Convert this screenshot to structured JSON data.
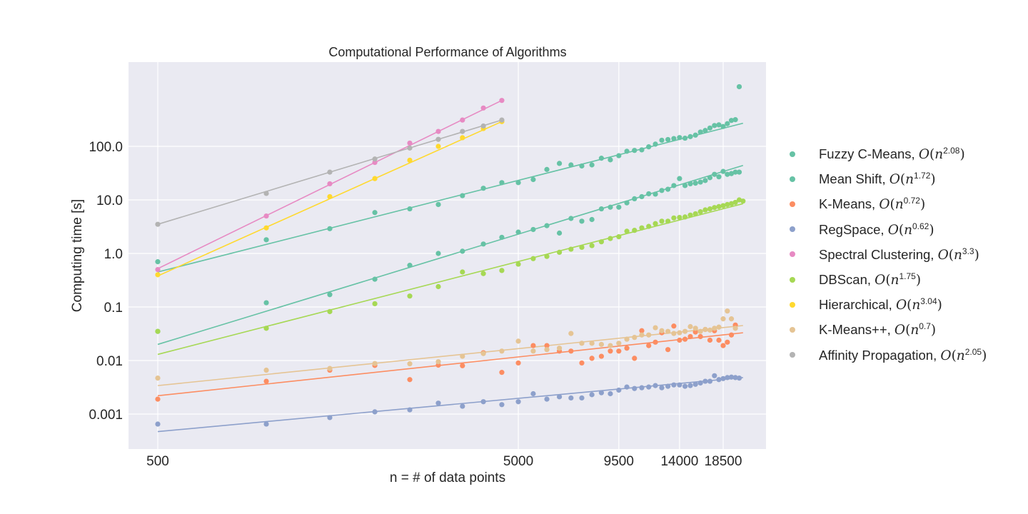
{
  "chart_data": {
    "type": "scatter",
    "title": "Computational Performance of Algorithms",
    "xlabel": "n = # of data points",
    "ylabel": "Computing time [s]",
    "xscale": "log",
    "yscale": "log",
    "xlim": [
      400,
      24000
    ],
    "ylim": [
      0.0002,
      2000
    ],
    "xticks": [
      500,
      5000,
      9500,
      14000,
      18500
    ],
    "xtick_labels": [
      "500",
      "5000",
      "9500",
      "14000",
      "18500"
    ],
    "yticks": [
      0.001,
      0.01,
      0.1,
      1,
      10,
      100
    ],
    "ytick_labels": [
      "0.001",
      "0.01",
      "0.1",
      "1.0",
      "10.0",
      "100.0"
    ],
    "grid": true,
    "legend_position": "right",
    "series": [
      {
        "name": "Fuzzy C-Means",
        "exponent": "2.08",
        "color": "#66c2a5",
        "fit": [
          [
            500,
            0.45
          ],
          [
            21000,
            270
          ]
        ],
        "x": [
          500,
          1000,
          1500,
          2000,
          2500,
          3000,
          3500,
          4000,
          4500,
          5000,
          5500,
          6000,
          6500,
          7000,
          7500,
          8000,
          8500,
          9000,
          9500,
          10000,
          10500,
          11000,
          11500,
          12000,
          12500,
          13000,
          13500,
          14000,
          14500,
          15000,
          15500,
          16000,
          16500,
          17000,
          17500,
          18000,
          18500,
          19000,
          19500,
          20000,
          20500,
          21000
        ],
        "y": [
          0.7,
          1.8,
          2.9,
          5.8,
          6.8,
          8.2,
          12,
          16.5,
          21,
          21,
          24,
          37,
          48,
          45,
          43,
          45,
          60,
          56,
          67,
          81,
          84,
          86,
          98,
          110,
          130,
          134,
          140,
          146,
          142,
          152,
          162,
          185,
          198,
          220,
          245,
          252,
          235,
          265,
          305,
          315,
          1300,
          0
        ]
      },
      {
        "name": "Mean Shift",
        "exponent": "1.72",
        "color": "#66c2a5",
        "fit": [
          [
            500,
            0.02
          ],
          [
            21000,
            44
          ]
        ],
        "x": [
          500,
          1000,
          1500,
          2000,
          2500,
          3000,
          3500,
          4000,
          4500,
          5000,
          5500,
          6000,
          6500,
          7000,
          7500,
          8000,
          8500,
          9000,
          9500,
          10000,
          10500,
          11000,
          11500,
          12000,
          12500,
          13000,
          13500,
          14000,
          14500,
          15000,
          15500,
          16000,
          16500,
          17000,
          17500,
          18000,
          18500,
          19000,
          19500,
          20000,
          20500
        ],
        "y": [
          0.035,
          0.12,
          0.17,
          0.33,
          0.6,
          1.0,
          1.1,
          1.5,
          2.0,
          2.5,
          2.8,
          3.3,
          2.4,
          4.5,
          4.0,
          4.3,
          6.8,
          7.3,
          7.3,
          8.8,
          10.5,
          11.5,
          13.0,
          12.8,
          15.0,
          15.8,
          18.5,
          25.0,
          18.5,
          20.0,
          20.5,
          21.5,
          23.0,
          26.0,
          30.0,
          27.0,
          34.0,
          30.0,
          31.0,
          33.0,
          33.0
        ]
      },
      {
        "name": "K-Means",
        "exponent": "0.72",
        "color": "#fc8d62",
        "fit": [
          [
            500,
            0.0022
          ],
          [
            21000,
            0.033
          ]
        ],
        "x": [
          500,
          1000,
          1500,
          2000,
          2500,
          3000,
          3500,
          4000,
          4500,
          5000,
          5500,
          6000,
          6500,
          7000,
          7500,
          8000,
          8500,
          9000,
          9500,
          10000,
          10500,
          11000,
          11500,
          12000,
          12500,
          13000,
          13500,
          14000,
          14500,
          15000,
          15500,
          16000,
          16500,
          17000,
          17500,
          18000,
          18500,
          19000,
          19500,
          20000,
          20500,
          21000
        ],
        "y": [
          0.0019,
          0.0041,
          0.0066,
          0.0081,
          0.0044,
          0.0082,
          0.008,
          0.014,
          0.006,
          0.009,
          0.019,
          0.019,
          0.015,
          0.015,
          0.009,
          0.011,
          0.012,
          0.015,
          0.015,
          0.017,
          0.011,
          0.036,
          0.019,
          0.022,
          0.033,
          0.016,
          0.044,
          0.024,
          0.025,
          0.028,
          0.034,
          0.028,
          0.038,
          0.024,
          0.036,
          0.024,
          0.019,
          0.022,
          0.03,
          0.046,
          0.0,
          0.0
        ]
      },
      {
        "name": "RegSpace",
        "exponent": "0.62",
        "color": "#8da0cb",
        "fit": [
          [
            500,
            0.00047
          ],
          [
            21000,
            0.0048
          ]
        ],
        "x": [
          500,
          1000,
          1500,
          2000,
          2500,
          3000,
          3500,
          4000,
          4500,
          5000,
          5500,
          6000,
          6500,
          7000,
          7500,
          8000,
          8500,
          9000,
          9500,
          10000,
          10500,
          11000,
          11500,
          12000,
          12500,
          13000,
          13500,
          14000,
          14500,
          15000,
          15500,
          16000,
          16500,
          17000,
          17500,
          18000,
          18500,
          19000,
          19500,
          20000,
          20500,
          21000
        ],
        "y": [
          0.00065,
          0.00065,
          0.00086,
          0.0011,
          0.0012,
          0.0016,
          0.0014,
          0.0017,
          0.0015,
          0.0017,
          0.0024,
          0.0019,
          0.0021,
          0.002,
          0.002,
          0.0023,
          0.0025,
          0.0024,
          0.0028,
          0.0032,
          0.003,
          0.0031,
          0.0032,
          0.0034,
          0.0031,
          0.0033,
          0.0035,
          0.0035,
          0.0033,
          0.0034,
          0.0036,
          0.0038,
          0.0041,
          0.0041,
          0.0052,
          0.0044,
          0.0046,
          0.0048,
          0.0049,
          0.0048,
          0.0047,
          0.0
        ]
      },
      {
        "name": "Spectral Clustering",
        "exponent": "3.3",
        "color": "#e78ac3",
        "fit": [
          [
            500,
            0.52
          ],
          [
            4500,
            720
          ]
        ],
        "x": [
          500,
          1000,
          1500,
          2000,
          2500,
          3000,
          3500,
          4000,
          4500
        ],
        "y": [
          0.5,
          5.0,
          20,
          50,
          115,
          190,
          310,
          520,
          720
        ]
      },
      {
        "name": "DBScan",
        "exponent": "1.75",
        "color": "#a6d854",
        "fit": [
          [
            500,
            0.013
          ],
          [
            21000,
            8.5
          ]
        ],
        "x": [
          500,
          1000,
          1500,
          2000,
          2500,
          3000,
          3500,
          4000,
          4500,
          5000,
          5500,
          6000,
          6500,
          7000,
          7500,
          8000,
          8500,
          9000,
          9500,
          10000,
          10500,
          11000,
          11500,
          12000,
          12500,
          13000,
          13500,
          14000,
          14500,
          15000,
          15500,
          16000,
          16500,
          17000,
          17500,
          18000,
          18500,
          19000,
          19500,
          20000,
          20500,
          21000
        ],
        "y": [
          0.035,
          0.04,
          0.082,
          0.115,
          0.16,
          0.24,
          0.45,
          0.42,
          0.48,
          0.63,
          0.8,
          0.88,
          1.05,
          1.2,
          1.3,
          1.4,
          1.65,
          1.9,
          2.05,
          2.6,
          2.7,
          3.0,
          3.2,
          3.6,
          4.0,
          4.0,
          4.6,
          4.7,
          4.8,
          5.2,
          5.5,
          6.0,
          6.5,
          6.8,
          7.2,
          7.5,
          7.8,
          8.2,
          8.5,
          9.0,
          10.0,
          9.5
        ]
      },
      {
        "name": "Hierarchical",
        "exponent": "3.04",
        "color": "#ffd92f",
        "fit": [
          [
            500,
            0.38
          ],
          [
            4500,
            290
          ]
        ],
        "x": [
          500,
          1000,
          1500,
          2000,
          2500,
          3000,
          3500,
          4000,
          4500
        ],
        "y": [
          0.4,
          3.0,
          11.5,
          25,
          55,
          100,
          145,
          215,
          290
        ]
      },
      {
        "name": "K-Means++",
        "exponent": "0.7",
        "color": "#e5c494",
        "fit": [
          [
            500,
            0.0034
          ],
          [
            21000,
            0.045
          ]
        ],
        "x": [
          500,
          1000,
          1500,
          2000,
          2500,
          3000,
          3500,
          4000,
          4500,
          5000,
          5500,
          6000,
          6500,
          7000,
          7500,
          8000,
          8500,
          9000,
          9500,
          10000,
          10500,
          11000,
          11500,
          12000,
          12500,
          13000,
          13500,
          14000,
          14500,
          15000,
          15500,
          16000,
          16500,
          17000,
          17500,
          18000,
          18500,
          19000,
          19500,
          20000,
          20500,
          21000
        ],
        "y": [
          0.0047,
          0.0066,
          0.0071,
          0.0088,
          0.0087,
          0.0095,
          0.012,
          0.0135,
          0.015,
          0.023,
          0.015,
          0.016,
          0.017,
          0.032,
          0.021,
          0.021,
          0.02,
          0.019,
          0.021,
          0.025,
          0.027,
          0.03,
          0.03,
          0.041,
          0.036,
          0.035,
          0.032,
          0.033,
          0.035,
          0.043,
          0.04,
          0.035,
          0.038,
          0.037,
          0.04,
          0.042,
          0.06,
          0.084,
          0.06,
          0.04,
          0.0,
          0.0
        ]
      },
      {
        "name": "Affinity Propagation",
        "exponent": "2.05",
        "color": "#b3b3b3",
        "fit": [
          [
            500,
            3.5
          ],
          [
            4500,
            310
          ]
        ],
        "x": [
          500,
          1000,
          1500,
          2000,
          2500,
          3000,
          3500,
          4000,
          4500
        ],
        "y": [
          3.5,
          13.2,
          33,
          58,
          93,
          135,
          190,
          240,
          310
        ]
      }
    ]
  }
}
